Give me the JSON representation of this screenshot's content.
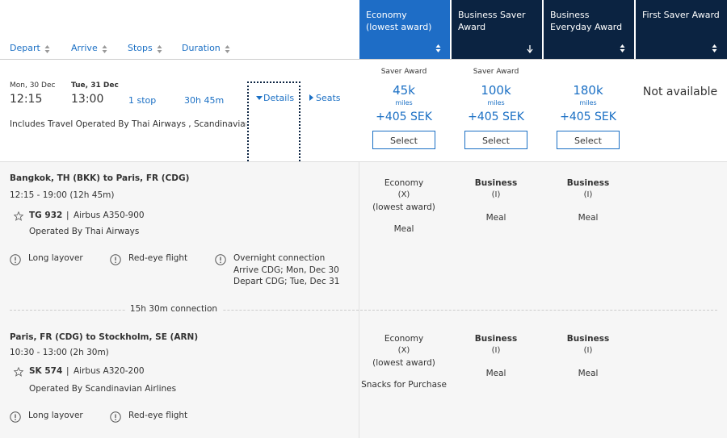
{
  "sort_headers": [
    "Depart",
    "Arrive",
    "Stops",
    "Duration"
  ],
  "cabins": [
    {
      "title_lines": [
        "Economy",
        "(lowest award)"
      ]
    },
    {
      "title_lines": [
        "Business Saver",
        "Award"
      ]
    },
    {
      "title_lines": [
        "Business",
        "Everyday Award"
      ]
    },
    {
      "title_lines": [
        "First Saver Award"
      ]
    }
  ],
  "flight": {
    "depart_date": "Mon, 30 Dec",
    "depart_time": "12:15",
    "arrive_date": "Tue, 31 Dec",
    "arrive_time": "13:00",
    "stops": "1 stop",
    "duration": "30h 45m",
    "details_link": "Details",
    "seats_link": "Seats",
    "operated_note": "Includes Travel Operated By Thai Airways , Scandinavian Airlines"
  },
  "fares": [
    {
      "label": "Saver Award",
      "miles": "45k",
      "unit": "miles",
      "tax": "+405 SEK",
      "button": "Select"
    },
    {
      "label": "Saver Award",
      "miles": "100k",
      "unit": "miles",
      "tax": "+405 SEK",
      "button": "Select"
    },
    {
      "label": "",
      "miles": "180k",
      "unit": "miles",
      "tax": "+405 SEK",
      "button": "Select"
    },
    {
      "status": "Not available"
    }
  ],
  "segments": [
    {
      "route": "Bangkok, TH (BKK) to Paris, FR (CDG)",
      "times": "12:15 - 19:00 (12h 45m)",
      "flight_number": "TG 932",
      "separator": "|",
      "aircraft": "Airbus A350-900",
      "operated_by": "Operated By Thai Airways",
      "warnings": [
        {
          "label": "Long layover"
        },
        {
          "label": "Red-eye flight"
        },
        {
          "label": "Overnight connection",
          "notes": [
            "Arrive CDG; Mon, Dec 30",
            "Depart CDG; Tue, Dec 31"
          ]
        }
      ],
      "cabin_details": [
        {
          "cabin": "Economy",
          "code": "(X)",
          "note": "(lowest award)",
          "meal": "Meal"
        },
        {
          "cabin": "Business",
          "code": "(I)",
          "meal": "Meal"
        },
        {
          "cabin": "Business",
          "code": "(I)",
          "meal": "Meal"
        }
      ]
    },
    {
      "route": "Paris, FR (CDG) to Stockholm, SE (ARN)",
      "times": "10:30 - 13:00 (2h 30m)",
      "flight_number": "SK 574",
      "separator": "|",
      "aircraft": "Airbus A320-200",
      "operated_by": "Operated By Scandinavian Airlines",
      "warnings": [
        {
          "label": "Long layover"
        },
        {
          "label": "Red-eye flight"
        }
      ],
      "cabin_details": [
        {
          "cabin": "Economy",
          "code": "(X)",
          "note": "(lowest award)",
          "meal": "Snacks for Purchase"
        },
        {
          "cabin": "Business",
          "code": "(I)",
          "meal": "Meal"
        },
        {
          "cabin": "Business",
          "code": "(I)",
          "meal": "Meal"
        }
      ]
    }
  ],
  "connection": "15h 30m connection"
}
